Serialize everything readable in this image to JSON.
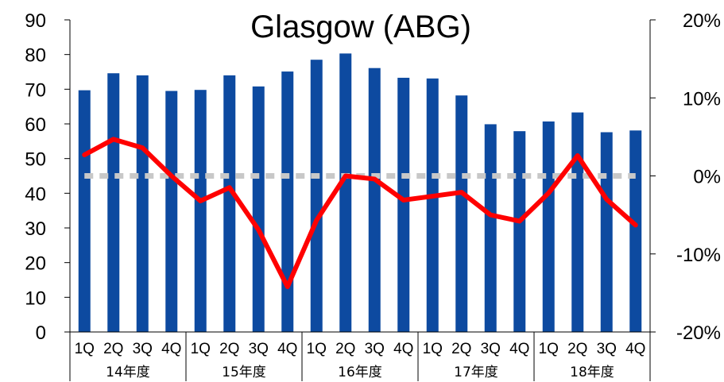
{
  "chart_data": {
    "type": "bar",
    "title": "Glasgow (ABG)",
    "quarters": [
      "1Q",
      "2Q",
      "3Q",
      "4Q",
      "1Q",
      "2Q",
      "3Q",
      "4Q",
      "1Q",
      "2Q",
      "3Q",
      "4Q",
      "1Q",
      "2Q",
      "3Q",
      "4Q",
      "1Q",
      "2Q",
      "3Q",
      "4Q"
    ],
    "groups": [
      "14年度",
      "15年度",
      "16年度",
      "17年度",
      "18年度"
    ],
    "left_axis": {
      "min": 0,
      "max": 90,
      "ticks": [
        "0",
        "10",
        "20",
        "30",
        "40",
        "50",
        "60",
        "70",
        "80",
        "90"
      ]
    },
    "right_axis": {
      "min": -0.2,
      "max": 0.2,
      "ticks": [
        "-20%",
        "-10%",
        "0%",
        "10%",
        "20%"
      ]
    },
    "series": [
      {
        "type": "bar",
        "color": "#0d4aa0",
        "values": [
          69.7,
          74.6,
          74.0,
          69.5,
          69.8,
          74.0,
          70.8,
          75.1,
          78.5,
          80.3,
          76.1,
          73.3,
          73.1,
          68.2,
          59.9,
          57.9,
          60.7,
          63.3,
          57.6,
          58.1
        ]
      },
      {
        "type": "line",
        "axis": "right",
        "color": "#ff0000",
        "values": [
          0.027,
          0.047,
          0.036,
          0.0,
          -0.032,
          -0.015,
          -0.069,
          -0.142,
          -0.057,
          0.0,
          -0.004,
          -0.031,
          -0.026,
          -0.021,
          -0.05,
          -0.058,
          -0.022,
          0.026,
          -0.03,
          -0.063
        ]
      },
      {
        "type": "line",
        "axis": "right",
        "style": "dashed",
        "color": "#c8c8c8",
        "values": [
          0,
          0,
          0,
          0,
          0,
          0,
          0,
          0,
          0,
          0,
          0,
          0,
          0,
          0,
          0,
          0,
          0,
          0,
          0,
          0
        ]
      }
    ],
    "grid": false,
    "legend": "none"
  }
}
